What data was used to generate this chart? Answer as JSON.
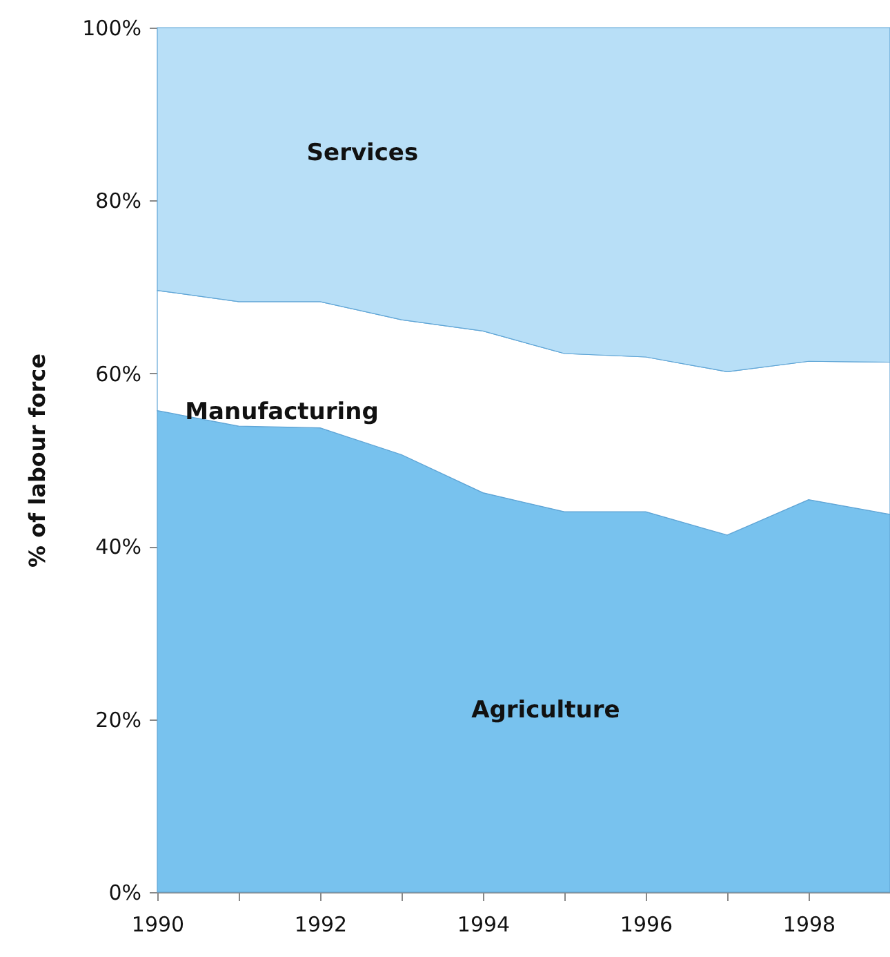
{
  "chart_data": {
    "type": "area",
    "stacked": true,
    "ylabel": "% of labour force",
    "x": [
      1990,
      1991,
      1992,
      1993,
      1994,
      1995,
      1996,
      1997,
      1998,
      1999
    ],
    "series": [
      {
        "name": "Agriculture",
        "color": "#78c2ee",
        "values": [
          55.7,
          53.9,
          53.7,
          50.6,
          46.2,
          44.0,
          44.0,
          41.3,
          45.4,
          43.7
        ]
      },
      {
        "name": "Manufacturing",
        "color": "#ffffff",
        "values": [
          13.9,
          14.4,
          14.6,
          15.6,
          18.7,
          18.3,
          17.9,
          18.9,
          16.0,
          17.6
        ]
      },
      {
        "name": "Services",
        "color": "#b8dff7",
        "values": [
          30.4,
          31.7,
          31.7,
          33.8,
          35.1,
          37.7,
          38.1,
          39.8,
          38.6,
          38.7
        ]
      }
    ],
    "xlim": [
      1990,
      1999
    ],
    "xticks": [
      1990,
      {
        "value": 1991,
        "label": null
      },
      1992,
      {
        "value": 1993,
        "label": null
      },
      1994,
      {
        "value": 1995,
        "label": null
      },
      1996,
      {
        "value": 1997,
        "label": null
      },
      1998,
      {
        "value": 1999,
        "label": null
      }
    ],
    "ylim": [
      0,
      100
    ],
    "yticks": [
      {
        "value": 0,
        "label": "0%"
      },
      {
        "value": 20,
        "label": "20%"
      },
      {
        "value": 40,
        "label": "40%"
      },
      {
        "value": 60,
        "label": "60%"
      },
      {
        "value": 80,
        "label": "80%"
      },
      {
        "value": 100,
        "label": "100%"
      }
    ]
  }
}
